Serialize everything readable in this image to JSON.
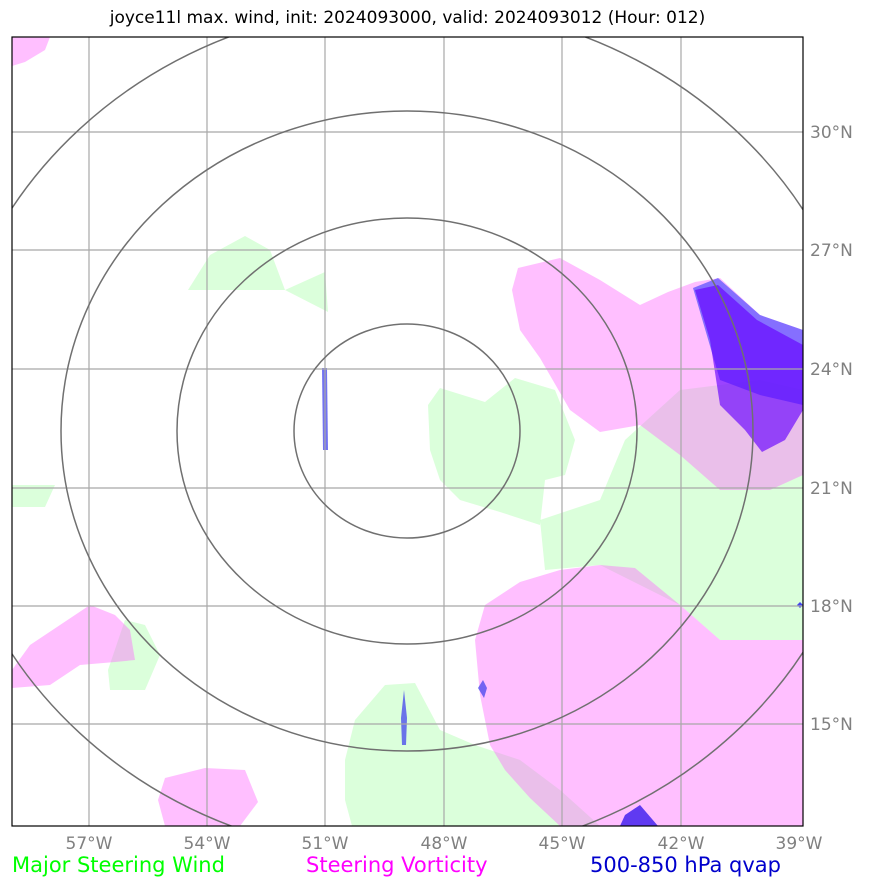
{
  "title": "joyce11l max. wind, init: 2024093000, valid: 2024093012 (Hour: 012)",
  "colors": {
    "wind": "#00ff00",
    "vorticity": "#ff00ff",
    "qvap": "#0000cc",
    "grid": "#808080",
    "rings": "#707070"
  },
  "map": {
    "lon_ticks": [
      "57°W",
      "54°W",
      "51°W",
      "48°W",
      "45°W",
      "42°W",
      "39°W"
    ],
    "lat_ticks": [
      "30°N",
      "27°N",
      "24°N",
      "21°N",
      "18°N",
      "15°N"
    ],
    "center": {
      "lon": "48°W",
      "lat": "22.5°N"
    },
    "range_rings_count": 4
  },
  "legend": {
    "wind": "Major Steering Wind",
    "vorticity": "Steering Vorticity",
    "qvap": "500-850 hPa qvap"
  }
}
